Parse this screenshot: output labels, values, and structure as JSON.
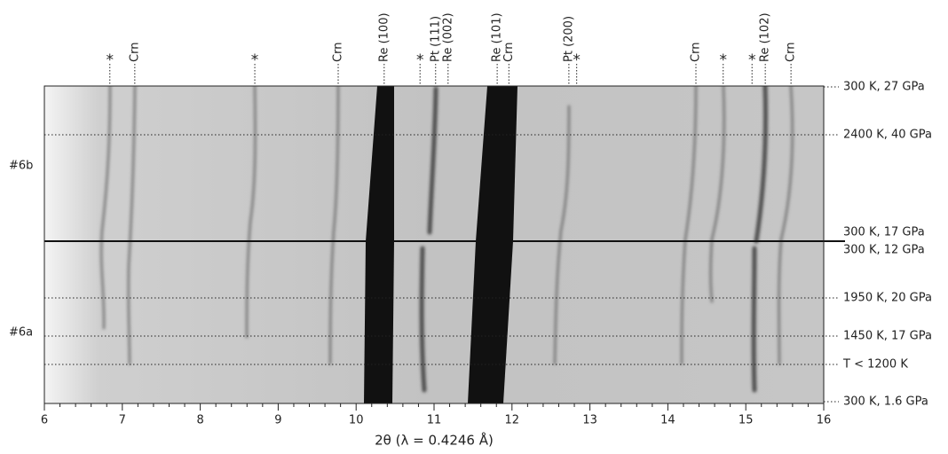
{
  "chart_data": {
    "type": "diffraction-image",
    "xlabel": "2θ (λ = 0.4246 Å)",
    "xlim": [
      6,
      16
    ],
    "xticks": [
      6,
      7,
      8,
      9,
      10,
      11,
      12,
      13,
      14,
      15,
      16
    ],
    "peaks": [
      {
        "label": "*",
        "x": 6.84
      },
      {
        "label": "Crn",
        "x": 7.16
      },
      {
        "label": "*",
        "x": 8.7
      },
      {
        "label": "Crn",
        "x": 9.77
      },
      {
        "label": "Re (100)",
        "x": 10.36
      },
      {
        "label": "*",
        "x": 10.82
      },
      {
        "label": "Pt (111)",
        "x": 11.02
      },
      {
        "label": "Re (002)",
        "x": 11.18
      },
      {
        "label": "Re (101)",
        "x": 11.81
      },
      {
        "label": "Crn",
        "x": 11.96
      },
      {
        "label": "Pt (200)",
        "x": 12.73
      },
      {
        "label": "*",
        "x": 12.83
      },
      {
        "label": "Crn",
        "x": 14.36
      },
      {
        "label": "*",
        "x": 14.71
      },
      {
        "label": "*",
        "x": 15.08
      },
      {
        "label": "Re (102)",
        "x": 15.25
      },
      {
        "label": "Crn",
        "x": 15.58
      }
    ],
    "conditions": [
      "300 K, 27 GPa",
      "2400 K, 40 GPa",
      "300 K, 17 GPa",
      "300 K, 12 GPa",
      "1950 K, 20 GPa",
      "1450 K, 17 GPa",
      "T  <  1200 K",
      "300 K, 1.6 GPa"
    ],
    "samples": [
      "#6b",
      "#6a"
    ]
  }
}
